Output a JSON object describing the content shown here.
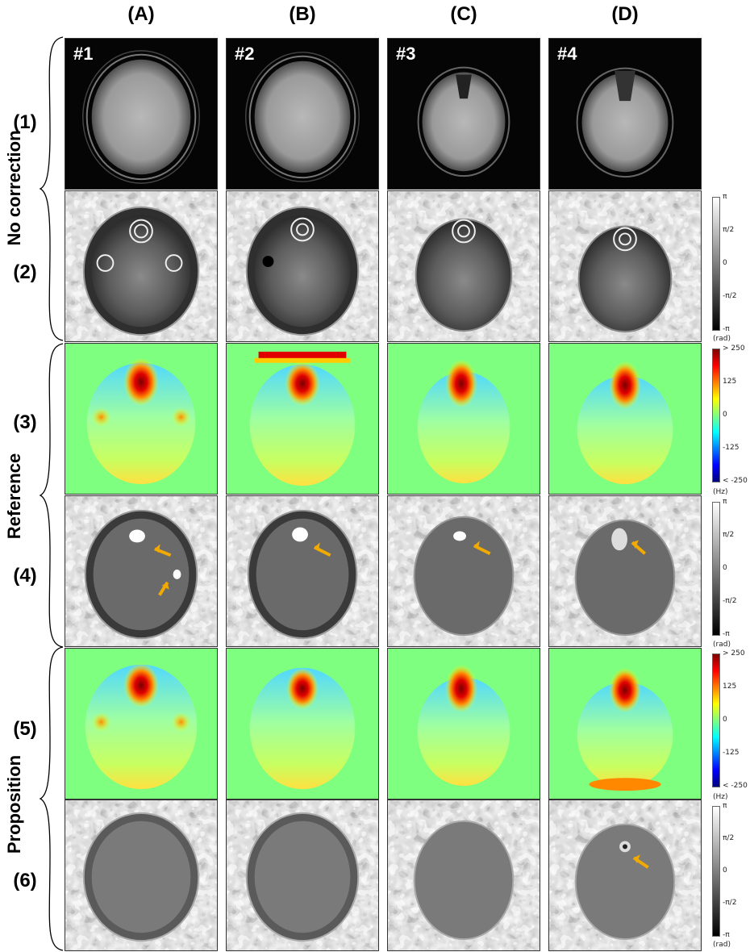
{
  "columns": [
    "(A)",
    "(B)",
    "(C)",
    "(D)"
  ],
  "cases": [
    "#1",
    "#2",
    "#3",
    "#4"
  ],
  "rows": [
    "(1)",
    "(2)",
    "(3)",
    "(4)",
    "(5)",
    "(6)"
  ],
  "groups": [
    "No correction",
    "Reference",
    "Proposition"
  ],
  "colorbars": {
    "phase_1": {
      "ticks": [
        "π",
        "π/2",
        "0",
        "-π/2",
        "-π"
      ],
      "unit": "(rad)"
    },
    "hz_1": {
      "ticks": [
        "> 250",
        "125",
        "0",
        "-125",
        "< -250"
      ],
      "unit": "(Hz)"
    },
    "phase_2": {
      "ticks": [
        "π",
        "π/2",
        "0",
        "-π/2",
        "-π"
      ],
      "unit": "(rad)"
    },
    "hz_2": {
      "ticks": [
        "> 250",
        "125",
        "0",
        "-125",
        "< -250"
      ],
      "unit": "(Hz)"
    },
    "phase_3": {
      "ticks": [
        "π",
        "π/2",
        "0",
        "-π/2",
        "-π"
      ],
      "unit": "(rad)"
    }
  },
  "colors": {
    "arrow": "#f2a900",
    "hz_background": "#7fff7f"
  }
}
